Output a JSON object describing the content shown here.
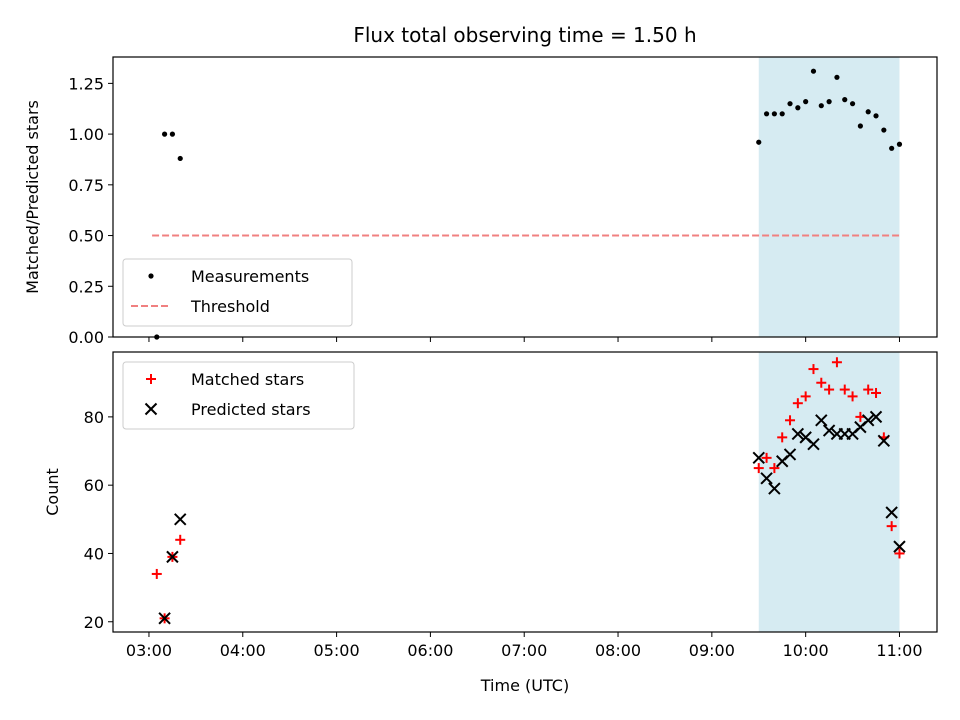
{
  "chart_data": [
    {
      "type": "scatter",
      "title": "Flux total observing time = 1.50 h",
      "xlabel": "",
      "ylabel": "Matched/Predicted stars",
      "ylim": [
        0,
        1.38
      ],
      "yticks": [
        "0.00",
        "0.25",
        "0.50",
        "0.75",
        "1.00",
        "1.25"
      ],
      "x_range": [
        "02:37",
        "11:24"
      ],
      "shaded_interval": {
        "from": "09:30",
        "to": "11:00",
        "color": "#add8e6"
      },
      "legend_position": "lower-left",
      "series": [
        {
          "name": "Measurements",
          "color": "#000000",
          "marker": "dot",
          "points": [
            [
              "03:05",
              0.0
            ],
            [
              "03:10",
              1.0
            ],
            [
              "03:15",
              1.0
            ],
            [
              "03:20",
              0.88
            ],
            [
              "09:30",
              0.96
            ],
            [
              "09:35",
              1.1
            ],
            [
              "09:40",
              1.1
            ],
            [
              "09:45",
              1.1
            ],
            [
              "09:50",
              1.15
            ],
            [
              "09:55",
              1.13
            ],
            [
              "10:00",
              1.16
            ],
            [
              "10:05",
              1.31
            ],
            [
              "10:10",
              1.14
            ],
            [
              "10:15",
              1.16
            ],
            [
              "10:20",
              1.28
            ],
            [
              "10:25",
              1.17
            ],
            [
              "10:30",
              1.15
            ],
            [
              "10:35",
              1.04
            ],
            [
              "10:40",
              1.11
            ],
            [
              "10:45",
              1.09
            ],
            [
              "10:50",
              1.02
            ],
            [
              "10:55",
              0.93
            ],
            [
              "11:00",
              0.95
            ]
          ]
        },
        {
          "name": "Threshold",
          "color": "#f08080",
          "line_style": "dashed",
          "points": [
            [
              "03:02",
              0.5
            ],
            [
              "11:00",
              0.5
            ]
          ]
        }
      ]
    },
    {
      "type": "scatter",
      "title": "",
      "xlabel": "Time (UTC)",
      "ylabel": "Count",
      "ylim": [
        17,
        99
      ],
      "yticks": [
        "20",
        "40",
        "60",
        "80"
      ],
      "x_range": [
        "02:37",
        "11:24"
      ],
      "xticks": [
        "03:00",
        "04:00",
        "05:00",
        "06:00",
        "07:00",
        "08:00",
        "09:00",
        "10:00",
        "11:00"
      ],
      "shaded_interval": {
        "from": "09:30",
        "to": "11:00",
        "color": "#add8e6"
      },
      "legend_position": "upper-left",
      "series": [
        {
          "name": "Matched stars",
          "color": "#ff0000",
          "marker": "plus",
          "points": [
            [
              "03:05",
              34
            ],
            [
              "03:10",
              21
            ],
            [
              "03:15",
              39
            ],
            [
              "03:20",
              44
            ],
            [
              "09:30",
              65
            ],
            [
              "09:35",
              68
            ],
            [
              "09:40",
              65
            ],
            [
              "09:45",
              74
            ],
            [
              "09:50",
              79
            ],
            [
              "09:55",
              84
            ],
            [
              "10:00",
              86
            ],
            [
              "10:05",
              94
            ],
            [
              "10:10",
              90
            ],
            [
              "10:15",
              88
            ],
            [
              "10:20",
              96
            ],
            [
              "10:25",
              88
            ],
            [
              "10:30",
              86
            ],
            [
              "10:35",
              80
            ],
            [
              "10:40",
              88
            ],
            [
              "10:45",
              87
            ],
            [
              "10:50",
              74
            ],
            [
              "10:55",
              48
            ],
            [
              "11:00",
              40
            ]
          ]
        },
        {
          "name": "Predicted stars",
          "color": "#000000",
          "marker": "x",
          "points": [
            [
              "03:10",
              21
            ],
            [
              "03:15",
              39
            ],
            [
              "03:20",
              50
            ],
            [
              "09:30",
              68
            ],
            [
              "09:35",
              62
            ],
            [
              "09:40",
              59
            ],
            [
              "09:45",
              67
            ],
            [
              "09:50",
              69
            ],
            [
              "09:55",
              75
            ],
            [
              "10:00",
              74
            ],
            [
              "10:05",
              72
            ],
            [
              "10:10",
              79
            ],
            [
              "10:15",
              76
            ],
            [
              "10:20",
              75
            ],
            [
              "10:25",
              75
            ],
            [
              "10:30",
              75
            ],
            [
              "10:35",
              77
            ],
            [
              "10:40",
              79
            ],
            [
              "10:45",
              80
            ],
            [
              "10:50",
              73
            ],
            [
              "10:55",
              52
            ],
            [
              "11:00",
              42
            ]
          ]
        }
      ]
    }
  ]
}
